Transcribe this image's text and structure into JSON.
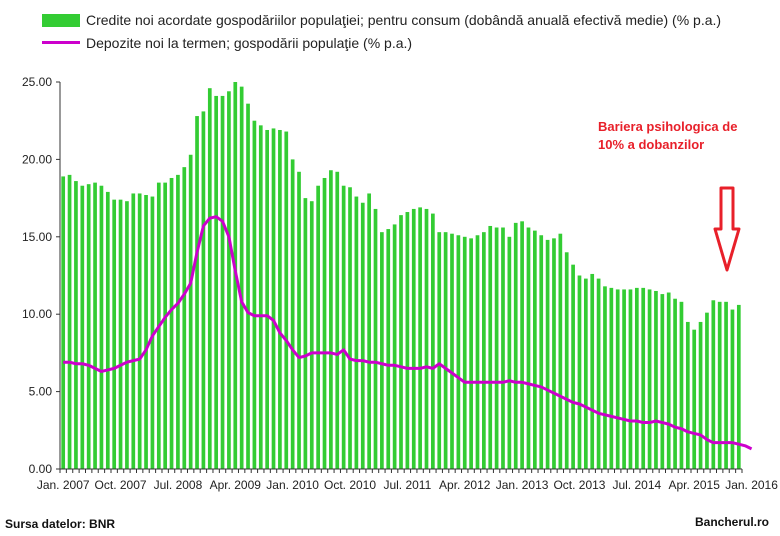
{
  "chart_data": {
    "type": "bar",
    "series": [
      {
        "name": "Credite noi acordate gospodăriilor populaţiei; pentru consum (dobândă anuală efectivă medie) (% p.a.)",
        "kind": "bar",
        "color": "#33cc33",
        "values": [
          18.9,
          19.0,
          18.6,
          18.3,
          18.4,
          18.5,
          18.3,
          17.9,
          17.4,
          17.4,
          17.3,
          17.8,
          17.8,
          17.7,
          17.6,
          18.5,
          18.5,
          18.8,
          19.0,
          19.5,
          20.3,
          22.8,
          23.1,
          24.6,
          24.1,
          24.1,
          24.4,
          25.0,
          24.7,
          23.6,
          22.5,
          22.2,
          21.9,
          22.0,
          21.9,
          21.8,
          20.0,
          19.2,
          17.5,
          17.3,
          18.3,
          18.8,
          19.3,
          19.2,
          18.3,
          18.2,
          17.6,
          17.2,
          17.8,
          16.8,
          15.3,
          15.5,
          15.8,
          16.4,
          16.6,
          16.8,
          16.9,
          16.8,
          16.5,
          15.3,
          15.3,
          15.2,
          15.1,
          15.0,
          14.9,
          15.1,
          15.3,
          15.7,
          15.6,
          15.6,
          15.0,
          15.9,
          16.0,
          15.6,
          15.4,
          15.1,
          14.8,
          14.9,
          15.2,
          14.0,
          13.2,
          12.5,
          12.3,
          12.6,
          12.3,
          11.8,
          11.7,
          11.6,
          11.6,
          11.6,
          11.7,
          11.7,
          11.6,
          11.5,
          11.3,
          11.4,
          11.0,
          10.8,
          9.5,
          9.0,
          9.5,
          10.1,
          10.9,
          10.8,
          10.8,
          10.3,
          10.6
        ]
      },
      {
        "name": "Depozite noi la termen; gospodării populaţie (% p.a.)",
        "kind": "line",
        "color": "#cc00cc",
        "values": [
          6.9,
          6.9,
          6.8,
          6.8,
          6.7,
          6.5,
          6.3,
          6.4,
          6.5,
          6.7,
          6.9,
          7.0,
          7.1,
          7.7,
          8.6,
          9.2,
          9.8,
          10.3,
          10.7,
          11.3,
          12.0,
          14.0,
          15.7,
          16.2,
          16.3,
          16.0,
          15.0,
          12.8,
          10.8,
          10.1,
          9.9,
          9.9,
          9.9,
          9.6,
          8.8,
          8.3,
          7.7,
          7.2,
          7.3,
          7.5,
          7.5,
          7.5,
          7.5,
          7.4,
          7.7,
          7.1,
          7.0,
          7.0,
          6.9,
          6.9,
          6.8,
          6.7,
          6.7,
          6.6,
          6.5,
          6.5,
          6.5,
          6.6,
          6.5,
          6.8,
          6.5,
          6.2,
          5.9,
          5.6,
          5.6,
          5.6,
          5.6,
          5.6,
          5.6,
          5.6,
          5.7,
          5.6,
          5.6,
          5.5,
          5.4,
          5.3,
          5.1,
          4.9,
          4.7,
          4.5,
          4.3,
          4.2,
          4.0,
          3.8,
          3.6,
          3.5,
          3.4,
          3.3,
          3.2,
          3.1,
          3.1,
          3.0,
          3.0,
          3.1,
          3.0,
          2.9,
          2.7,
          2.6,
          2.4,
          2.3,
          2.2,
          1.9,
          1.7,
          1.7,
          1.7,
          1.7,
          1.6,
          1.5,
          1.3
        ]
      }
    ],
    "x_labels": [
      "Jan. 2007",
      "Oct. 2007",
      "Jul. 2008",
      "Apr. 2009",
      "Jan. 2010",
      "Oct. 2010",
      "Jul. 2011",
      "Apr. 2012",
      "Jan. 2013",
      "Oct. 2013",
      "Jul. 2014",
      "Apr. 2015",
      "Jan. 2016"
    ],
    "x_label_every": 9,
    "y_ticks": [
      "0.00",
      "5.00",
      "10.00",
      "15.00",
      "20.00",
      "25.00"
    ],
    "ylim": [
      0,
      25
    ],
    "grid": "none",
    "legend_position": "top-left",
    "annotation": {
      "lines": [
        "Bariera psihologica de",
        "10% a dobanzilor"
      ],
      "color": "#e8202a",
      "arrow": "down-arrow"
    }
  },
  "footer": {
    "source": "Sursa datelor: BNR",
    "brand": "Bancherul.ro"
  }
}
